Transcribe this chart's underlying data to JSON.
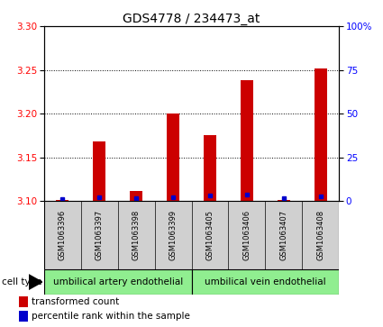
{
  "title": "GDS4778 / 234473_at",
  "samples": [
    "GSM1063396",
    "GSM1063397",
    "GSM1063398",
    "GSM1063399",
    "GSM1063405",
    "GSM1063406",
    "GSM1063407",
    "GSM1063408"
  ],
  "transformed_count": [
    3.101,
    3.168,
    3.112,
    3.2,
    3.175,
    3.238,
    3.101,
    3.252
  ],
  "percentile_rank": [
    1.0,
    2.0,
    1.5,
    2.0,
    3.0,
    3.5,
    1.5,
    2.5
  ],
  "ylim_left": [
    3.1,
    3.3
  ],
  "ylim_right": [
    0,
    100
  ],
  "yticks_left": [
    3.1,
    3.15,
    3.2,
    3.25,
    3.3
  ],
  "yticks_right": [
    0,
    25,
    50,
    75,
    100
  ],
  "ytick_labels_right": [
    "0",
    "25",
    "50",
    "75",
    "100%"
  ],
  "bar_color": "#cc0000",
  "percentile_color": "#0000cc",
  "bar_width": 0.35,
  "cell_type_groups": [
    {
      "label": "umbilical artery endothelial",
      "start": 0,
      "end": 3,
      "color": "#90ee90"
    },
    {
      "label": "umbilical vein endothelial",
      "start": 4,
      "end": 7,
      "color": "#90ee90"
    }
  ],
  "cell_type_label": "cell type",
  "legend_items": [
    {
      "label": "transformed count",
      "color": "#cc0000"
    },
    {
      "label": "percentile rank within the sample",
      "color": "#0000cc"
    }
  ],
  "title_fontsize": 10,
  "tick_fontsize": 7.5,
  "label_fontsize": 7.5,
  "background_color": "#ffffff",
  "cell_type_box_color": "#d0d0d0"
}
